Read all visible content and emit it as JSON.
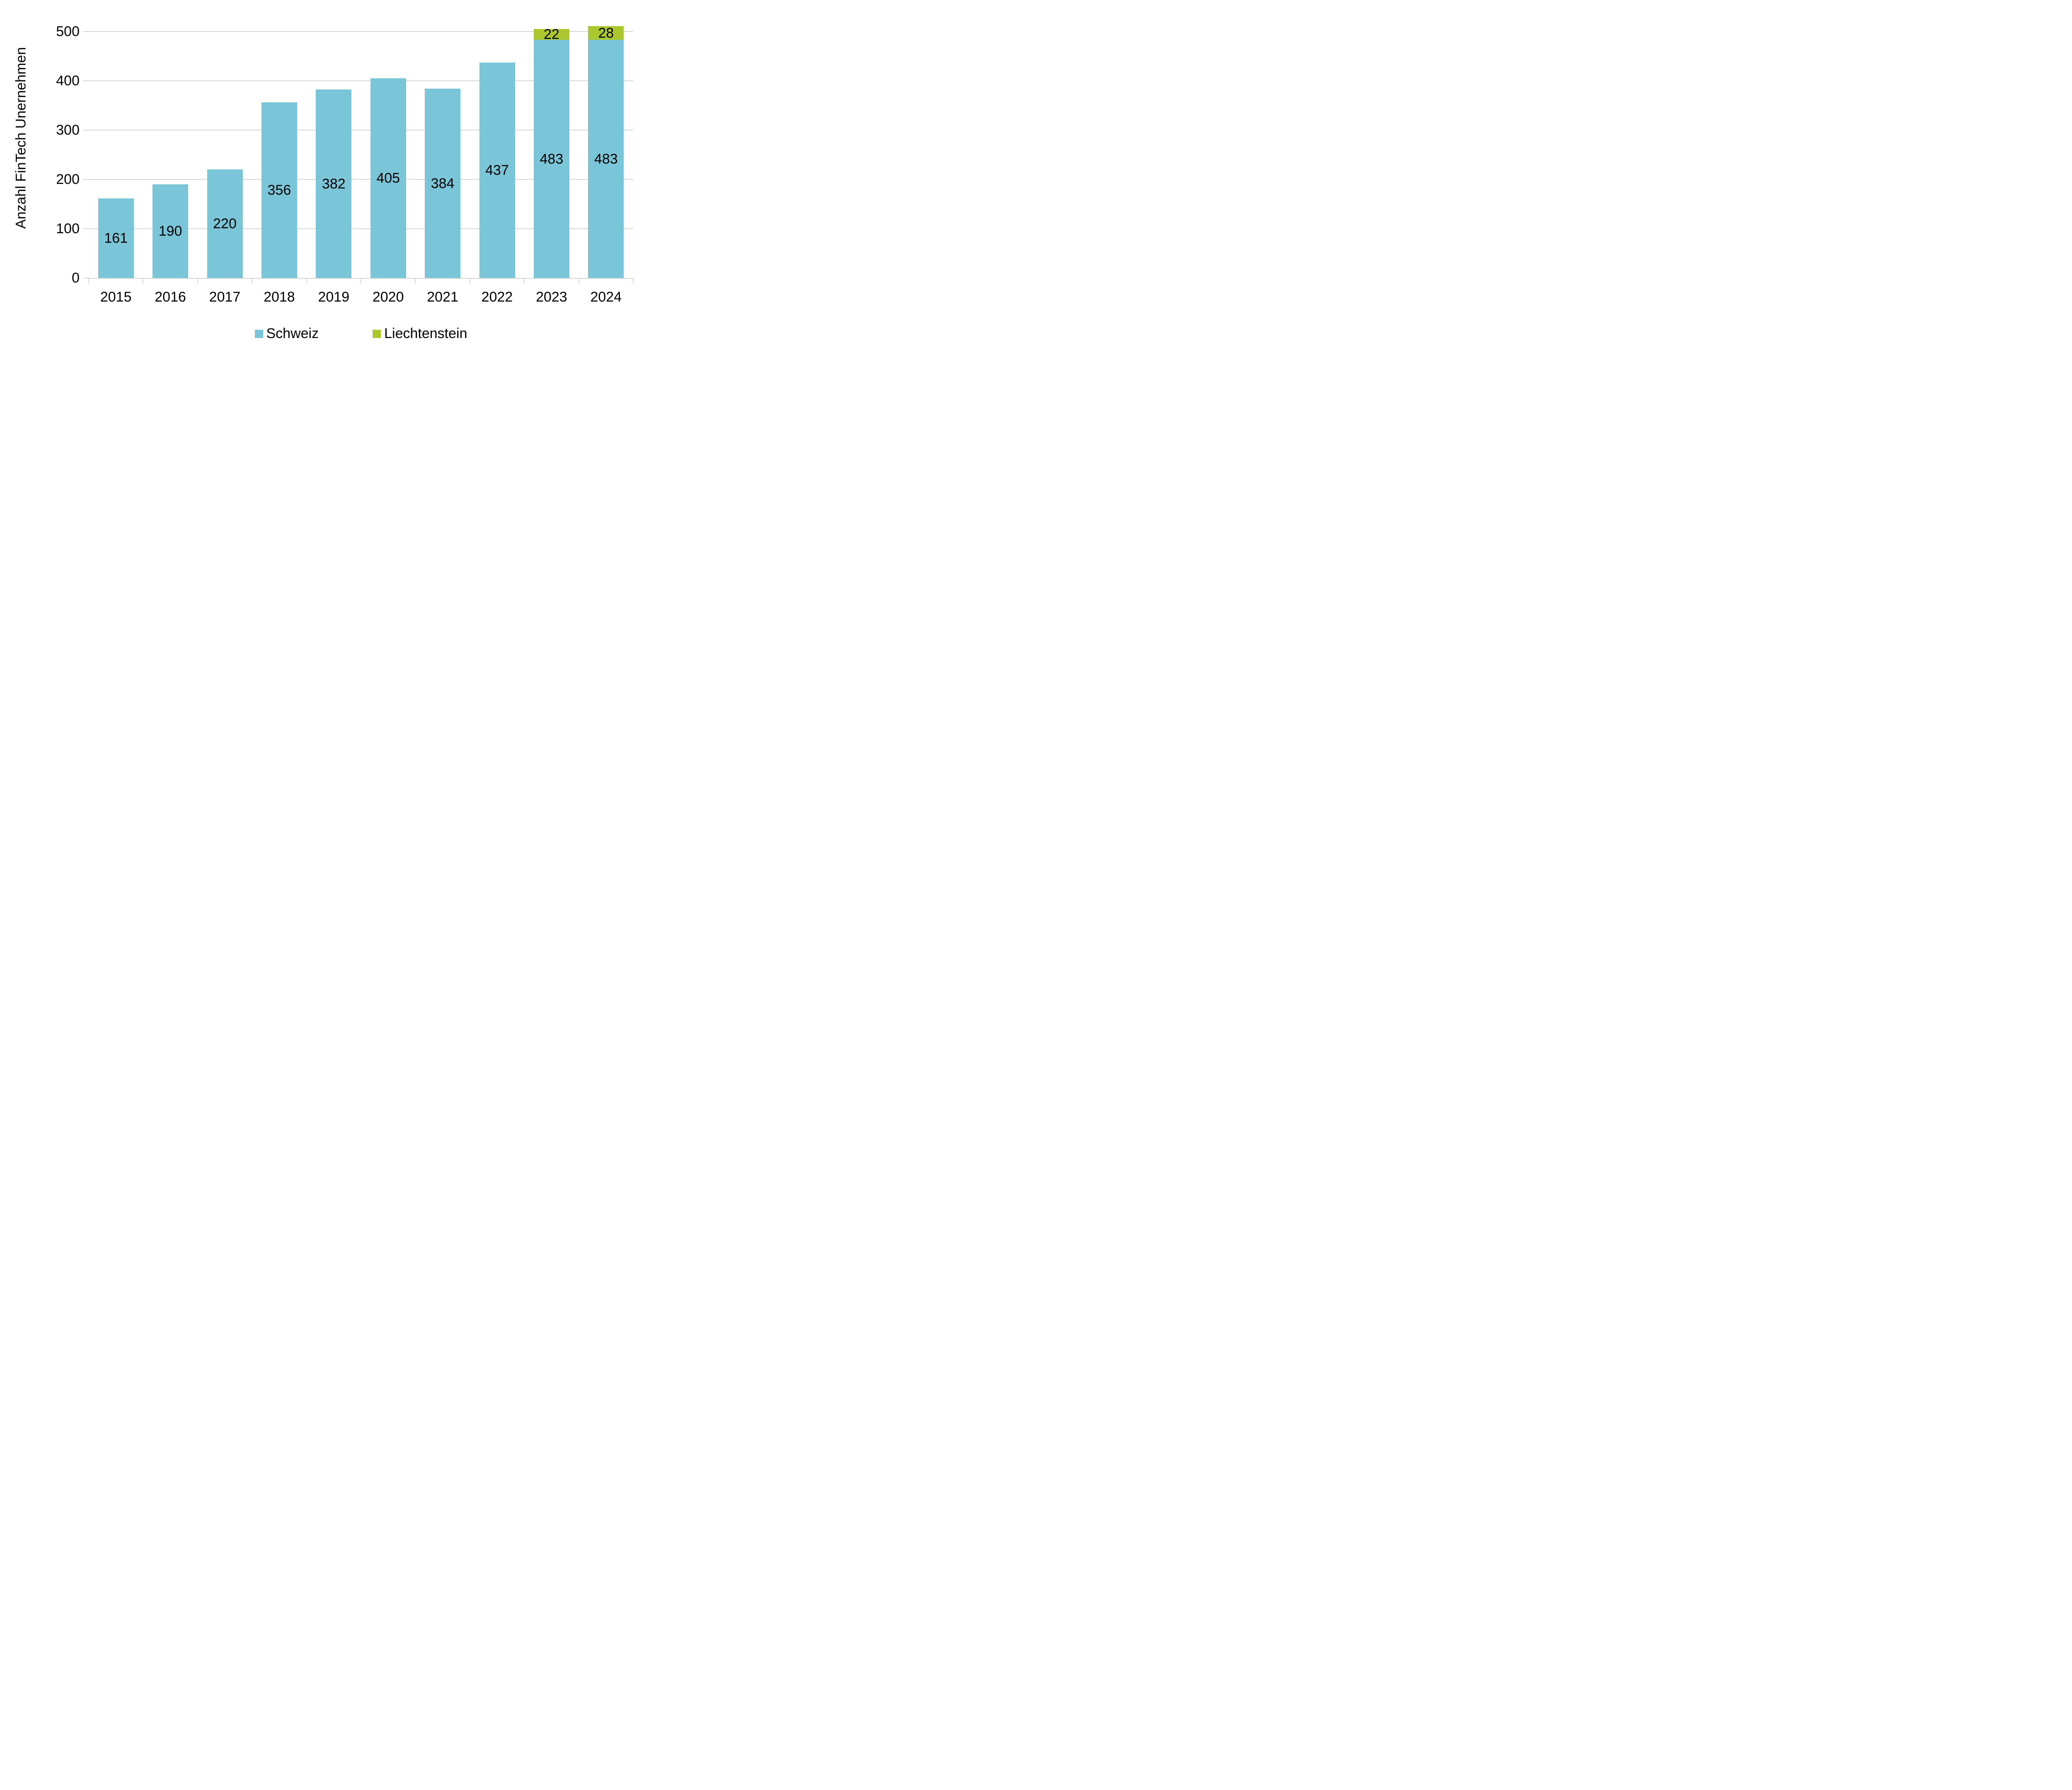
{
  "chart_data": {
    "type": "bar",
    "stacked": true,
    "title": "",
    "ylabel": "Anzahl FinTech Unernehmen",
    "xlabel": "",
    "categories": [
      "2015",
      "2016",
      "2017",
      "2018",
      "2019",
      "2020",
      "2021",
      "2022",
      "2023",
      "2024"
    ],
    "series": [
      {
        "name": "Schweiz",
        "color": "#7ac6d8",
        "values": [
          161,
          190,
          220,
          356,
          382,
          405,
          384,
          437,
          483,
          483
        ]
      },
      {
        "name": "Liechtenstein",
        "color": "#aac82d",
        "values": [
          0,
          0,
          0,
          0,
          0,
          0,
          0,
          0,
          22,
          28
        ]
      }
    ],
    "bar_value_labels_visible": true,
    "ylim": [
      0,
      500
    ],
    "yticks": [
      0,
      100,
      200,
      300,
      400,
      500
    ],
    "grid": true,
    "legend_position": "bottom",
    "colors": {
      "grid": "#d6d6d6",
      "axis": "#d6d6d6",
      "text": "#000000",
      "background": "#ffffff"
    }
  }
}
